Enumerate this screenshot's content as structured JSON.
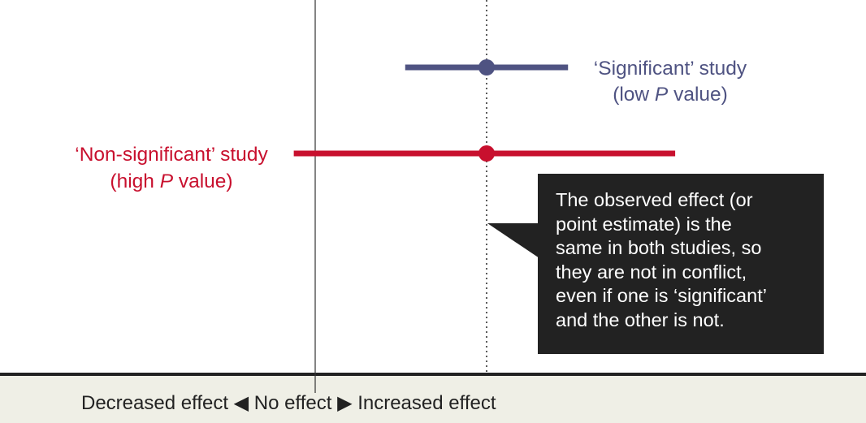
{
  "chart_data": {
    "type": "forest",
    "title": "",
    "xlabel": "",
    "ylabel": "",
    "xlim": [
      -4.2,
      4.5
    ],
    "reference_lines": [
      {
        "x": 0,
        "style": "solid",
        "meaning": "No effect"
      },
      {
        "x": 2,
        "style": "dotted",
        "meaning": "Point estimate"
      }
    ],
    "series": [
      {
        "name": "'Significant' study",
        "point_estimate": 2,
        "ci_lower": 1.05,
        "ci_upper": 2.95,
        "color": "#4f5382",
        "label_lines": [
          "‘Significant’ study",
          "(low ",
          "P",
          " value)"
        ]
      },
      {
        "name": "'Non-significant' study",
        "point_estimate": 2,
        "ci_lower": -0.25,
        "ci_upper": 4.2,
        "color": "#c8102e",
        "label_lines": [
          "‘Non-significant’ study",
          "(high ",
          "P",
          " value)"
        ]
      }
    ],
    "annotations": {
      "callout_lines": [
        "The observed effect (or",
        "point estimate) is the",
        "same in both studies, so",
        "they are not in conflict,",
        "even if one is ‘significant’",
        "and the other is not."
      ]
    },
    "axis_caption": "Decreased effect ◀ No effect ▶ Increased effect"
  },
  "colors": {
    "significant": "#4f5382",
    "non_significant": "#c8102e",
    "callout_bg": "#222222",
    "axis_band": "#efefe6"
  }
}
